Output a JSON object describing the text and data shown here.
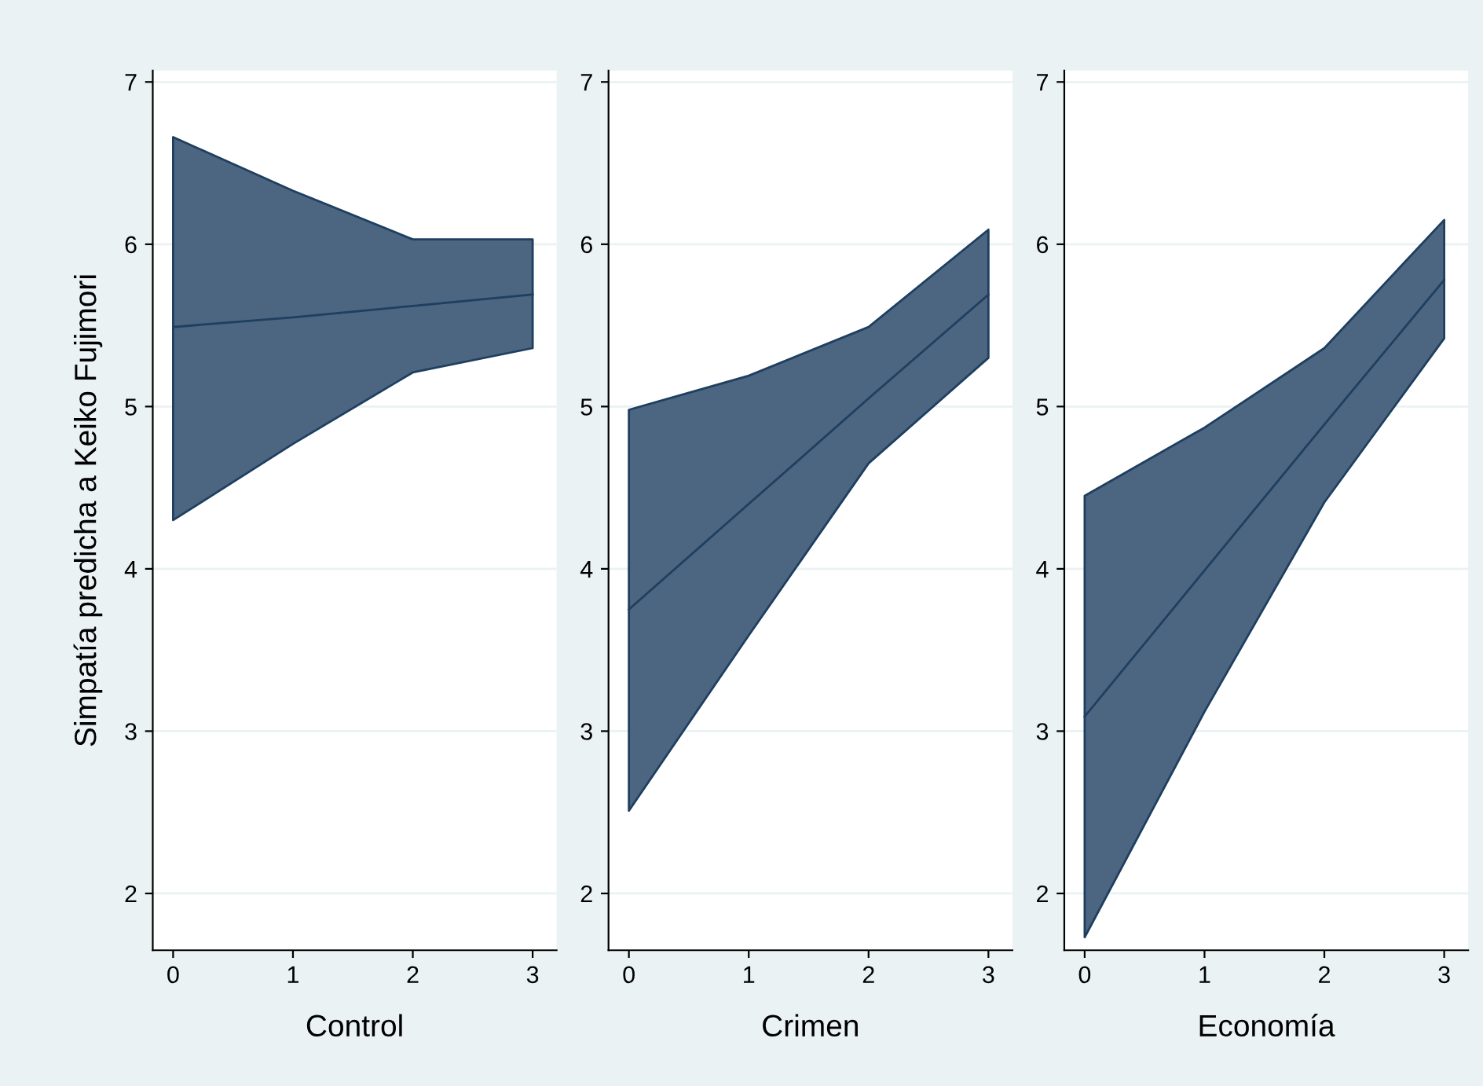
{
  "chart_data": [
    {
      "type": "line",
      "xlabel": "Control",
      "ylabel": "Simpatía predicha a Keiko Fujimori",
      "x": [
        0,
        1,
        2,
        3
      ],
      "xlim": [
        -0.17,
        3.2
      ],
      "xticks": [
        0,
        1,
        2,
        3
      ],
      "ylim": [
        1.65,
        7.07
      ],
      "yticks": [
        2,
        3,
        4,
        5,
        6,
        7
      ],
      "grid": "y",
      "series": [
        {
          "color": "#1f3f60",
          "values": [
            5.49,
            5.55,
            5.62,
            5.69
          ],
          "lower": [
            4.3,
            4.77,
            5.21,
            5.36
          ],
          "upper": [
            6.66,
            6.33,
            6.03,
            6.03
          ]
        }
      ]
    },
    {
      "type": "line",
      "xlabel": "Crimen",
      "x": [
        0,
        1,
        2,
        3
      ],
      "xlim": [
        -0.17,
        3.2
      ],
      "xticks": [
        0,
        1,
        2,
        3
      ],
      "ylim": [
        1.65,
        7.07
      ],
      "yticks": [
        2,
        3,
        4,
        5,
        6,
        7
      ],
      "grid": "y",
      "series": [
        {
          "color": "#1f3f60",
          "values": [
            3.75,
            4.4,
            5.05,
            5.69
          ],
          "lower": [
            2.51,
            3.59,
            4.65,
            5.3
          ],
          "upper": [
            4.98,
            5.19,
            5.49,
            6.09
          ]
        }
      ]
    },
    {
      "type": "line",
      "xlabel": "Economía",
      "x": [
        0,
        1,
        2,
        3
      ],
      "xlim": [
        -0.17,
        3.2
      ],
      "xticks": [
        0,
        1,
        2,
        3
      ],
      "ylim": [
        1.65,
        7.07
      ],
      "yticks": [
        2,
        3,
        4,
        5,
        6,
        7
      ],
      "grid": "y",
      "series": [
        {
          "color": "#1f3f60",
          "values": [
            3.09,
            3.99,
            4.89,
            5.78
          ],
          "lower": [
            1.73,
            3.12,
            4.41,
            5.42
          ],
          "upper": [
            4.45,
            4.87,
            5.36,
            6.15
          ]
        }
      ]
    }
  ]
}
